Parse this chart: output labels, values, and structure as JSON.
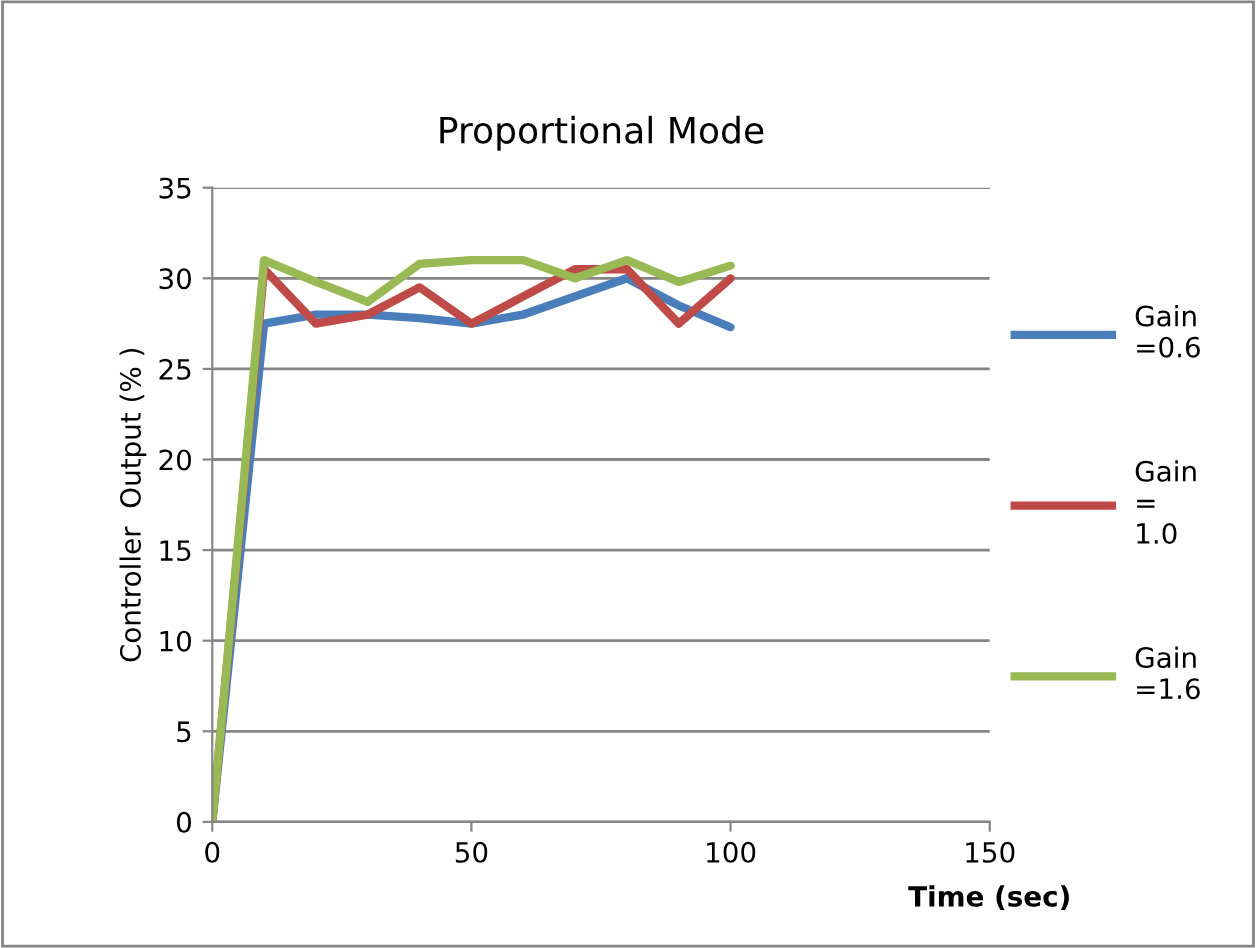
{
  "chart_data": {
    "type": "line",
    "title": "Proportional Mode",
    "xlabel": "Time (sec)",
    "ylabel": "Controller  Output (% )",
    "x": [
      0,
      10,
      20,
      30,
      40,
      50,
      60,
      70,
      80,
      90,
      100
    ],
    "series": [
      {
        "name": "Gain =0.6",
        "color": "#4a7ebb",
        "values": [
          0,
          27.5,
          28,
          28,
          27.8,
          27.5,
          28,
          29,
          30,
          28.5,
          27.3
        ]
      },
      {
        "name": "Gain = 1.0",
        "color": "#be4b48",
        "values": [
          0,
          30.5,
          27.5,
          28,
          29.5,
          27.5,
          29,
          30.5,
          30.5,
          27.5,
          30
        ]
      },
      {
        "name": "Gain =1.6",
        "color": "#98b954",
        "values": [
          0,
          31,
          29.8,
          28.7,
          30.8,
          31,
          31,
          30,
          31,
          29.8,
          30.7
        ]
      }
    ],
    "xlim": [
      0,
      150
    ],
    "xticks": [
      0,
      50,
      100,
      150
    ],
    "ylim": [
      0,
      35
    ],
    "yticks": [
      0,
      5,
      10,
      15,
      20,
      25,
      30,
      35
    ],
    "grid": "y",
    "legend": "right",
    "marker": "none",
    "line_style": "solid"
  }
}
